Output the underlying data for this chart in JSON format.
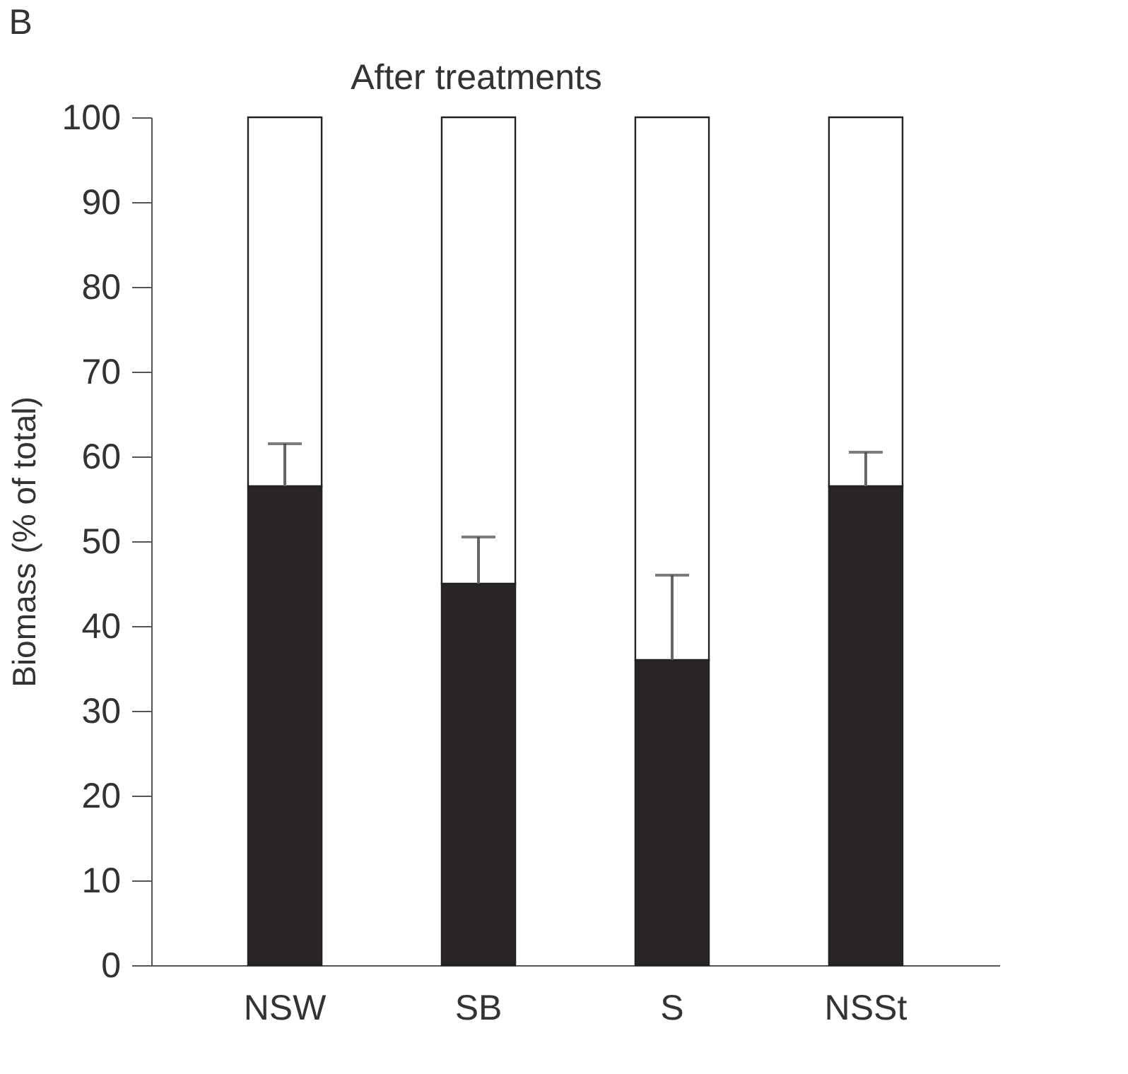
{
  "chart_data": {
    "type": "bar",
    "title": "After treatments",
    "ylabel": "Biomass (% of total)",
    "annotations": [
      "B"
    ],
    "categories": [
      "NSW",
      "SB",
      "S",
      "NSSt"
    ],
    "stacked": true,
    "series": [
      {
        "color": "#292526",
        "values": [
          56.5,
          45,
          36,
          56.5
        ],
        "errors": [
          [
            56.5,
            61.5
          ],
          [
            45,
            50.5
          ],
          [
            36,
            46
          ],
          [
            56.5,
            60.5
          ]
        ]
      },
      {
        "color": "#ffffff",
        "values": [
          43.5,
          55,
          64,
          43.5
        ]
      }
    ],
    "ylim": [
      0,
      100
    ],
    "yticks": [
      0,
      10,
      20,
      30,
      40,
      50,
      60,
      70,
      80,
      90,
      100
    ],
    "grid": false
  }
}
